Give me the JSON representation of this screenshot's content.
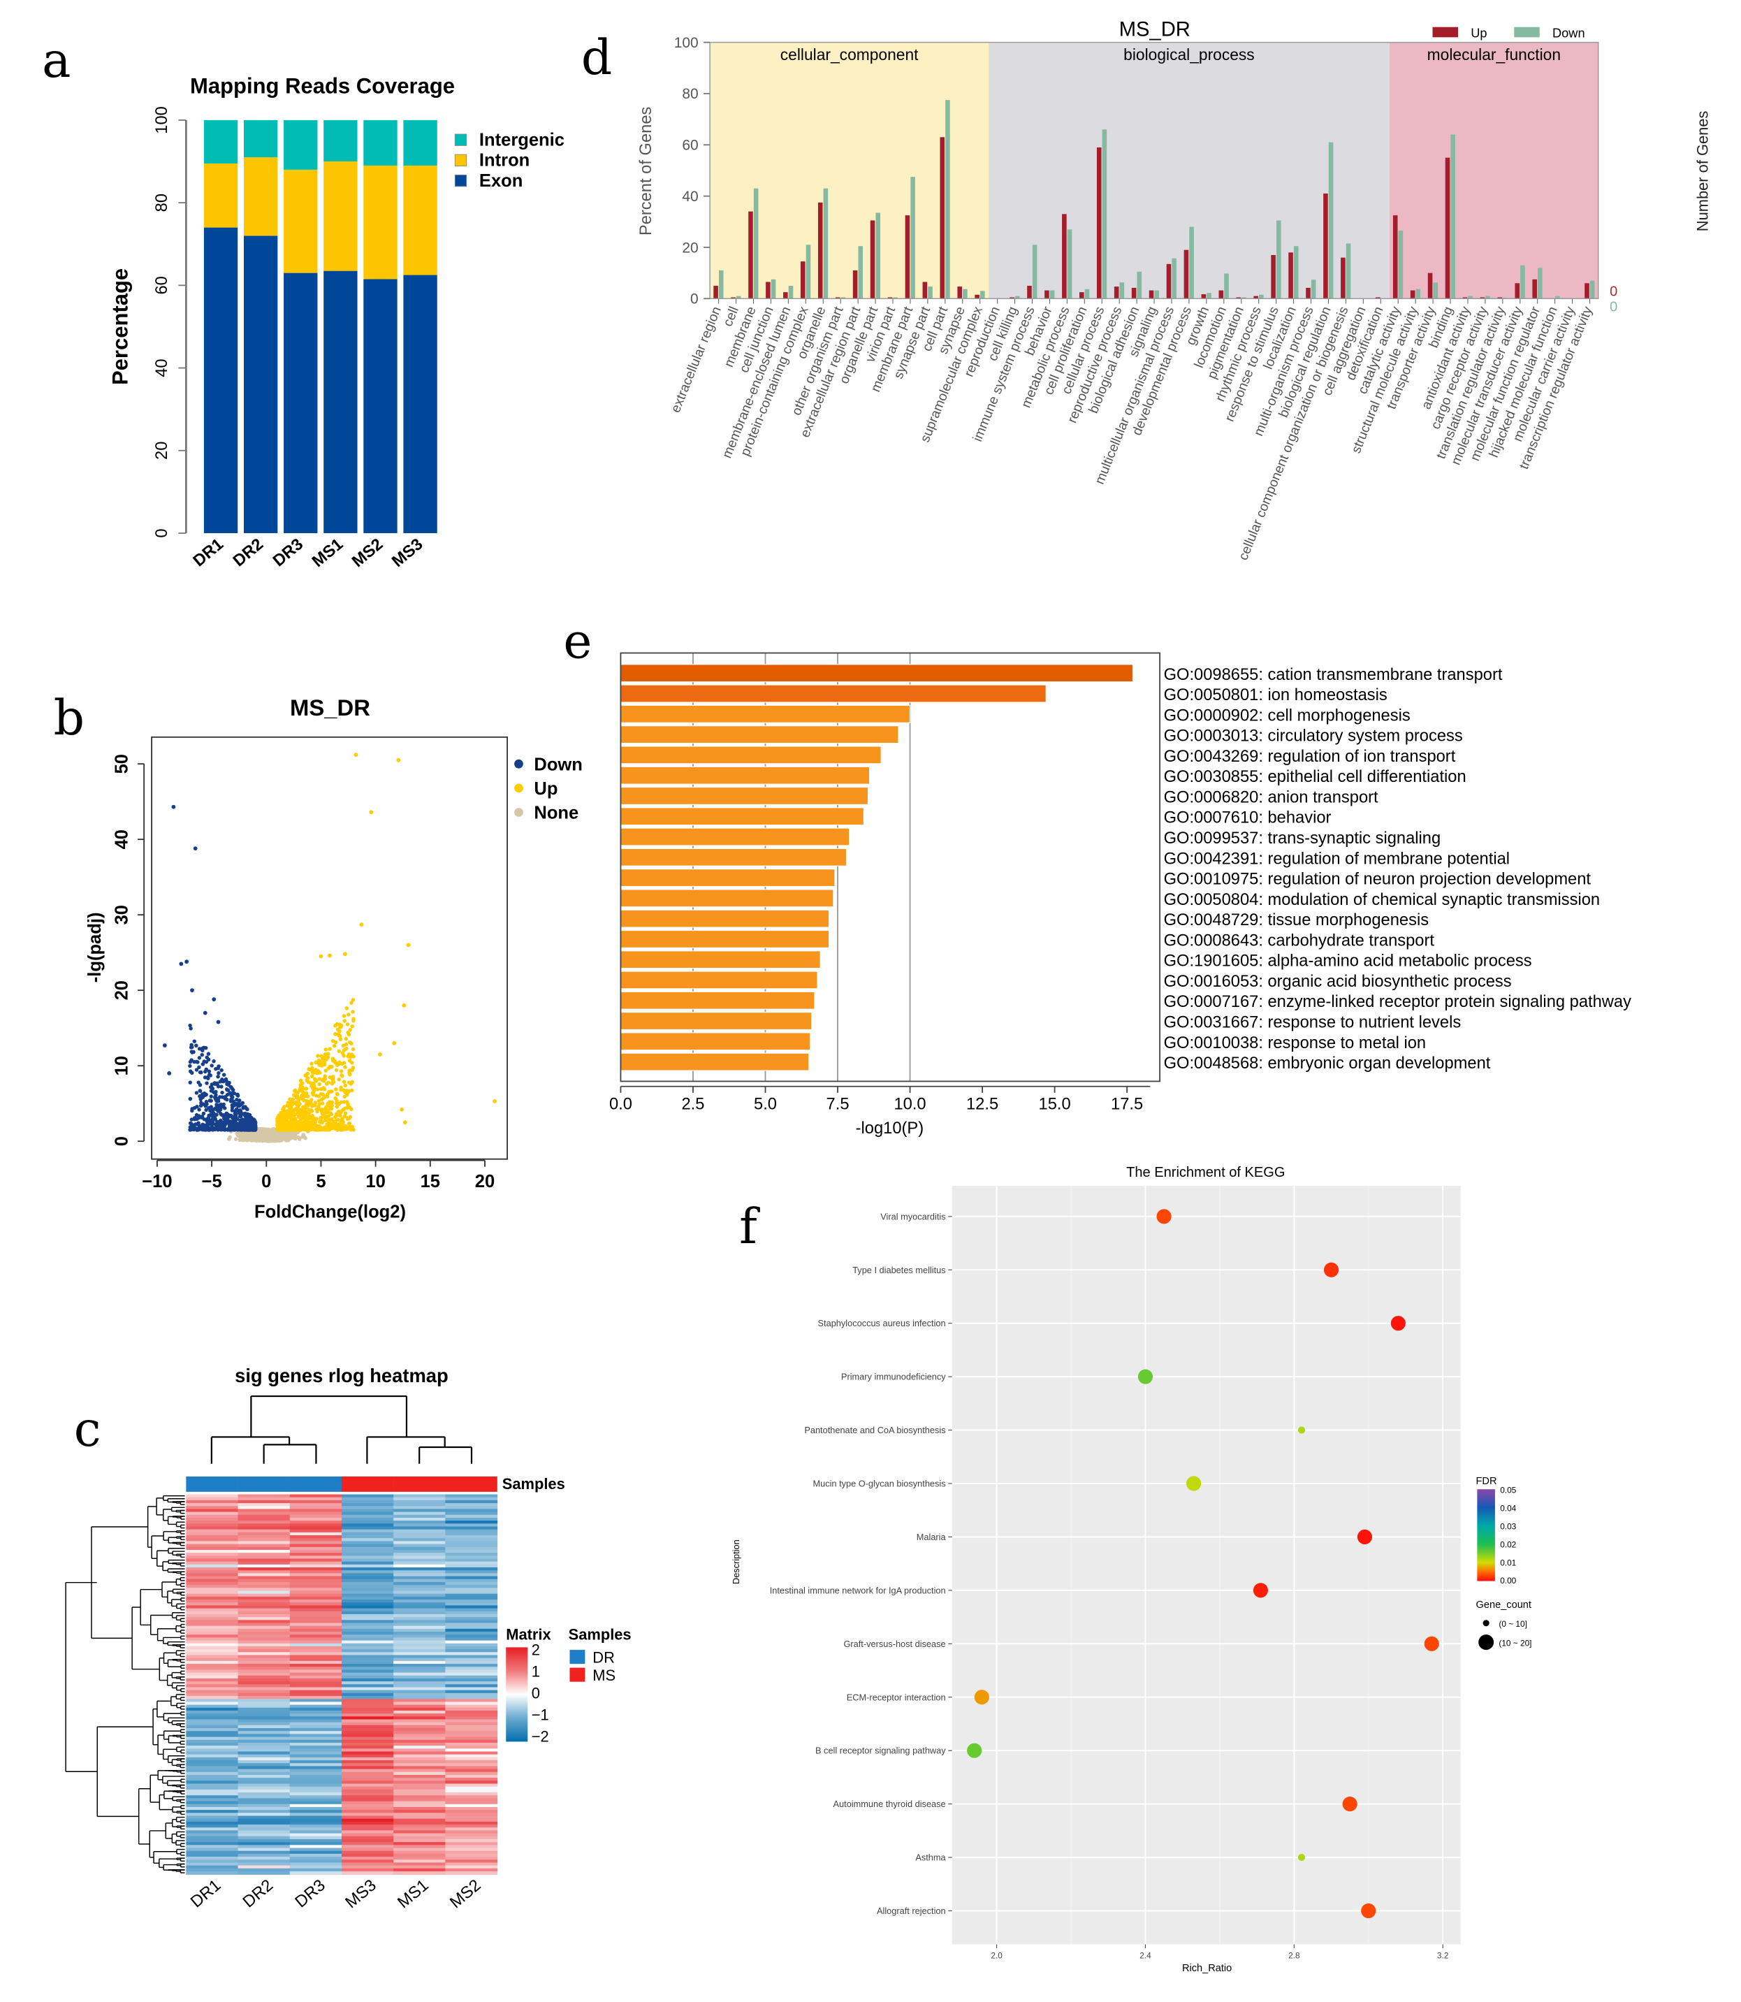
{
  "panel_letters": {
    "a": "a",
    "b": "b",
    "c": "c",
    "d": "d",
    "e": "e",
    "f": "f"
  },
  "chart_data": [
    {
      "id": "a",
      "type": "bar",
      "stacked": true,
      "title": "Mapping Reads Coverage",
      "ylabel": "Percentage",
      "ylim": [
        0,
        100
      ],
      "yticks": [
        "0",
        "20",
        "40",
        "60",
        "80",
        "100"
      ],
      "categories": [
        "DR1",
        "DR2",
        "DR3",
        "MS1",
        "MS2",
        "MS3"
      ],
      "series": [
        {
          "name": "Exon",
          "color": "#00479a",
          "values": [
            74,
            72,
            63,
            63.5,
            61.5,
            62.5
          ]
        },
        {
          "name": "Intron",
          "color": "#fdc500",
          "values": [
            15.5,
            19,
            25,
            26.5,
            27.5,
            26.5
          ]
        },
        {
          "name": "Intergenic",
          "color": "#00bcb4",
          "values": [
            10.5,
            9,
            12,
            10,
            11,
            11
          ]
        }
      ],
      "legend": [
        "Intergenic",
        "Intron",
        "Exon"
      ]
    },
    {
      "id": "b",
      "type": "scatter",
      "title": "MS_DR",
      "xlabel": "FoldChange(log2)",
      "ylabel": "-lg(padj)",
      "xlim": [
        -10,
        22
      ],
      "ylim": [
        0,
        53
      ],
      "xticks": [
        "−10",
        "−5",
        "0",
        "5",
        "10",
        "15",
        "20"
      ],
      "xtick_values": [
        -10,
        -5,
        0,
        5,
        10,
        15,
        20
      ],
      "yticks": [
        "0",
        "10",
        "20",
        "30",
        "40",
        "50"
      ],
      "legend": [
        {
          "name": "Down",
          "color": "#16408c"
        },
        {
          "name": "Up",
          "color": "#ffcc00"
        },
        {
          "name": "None",
          "color": "#d6c7a6"
        }
      ],
      "notable_points": {
        "Down": [
          [
            -8.5,
            44.3
          ],
          [
            -6.5,
            38.8
          ],
          [
            -7.8,
            23.5
          ],
          [
            -7.3,
            23.8
          ],
          [
            -6.8,
            20
          ],
          [
            -4.8,
            18.8
          ],
          [
            -9.3,
            12.7
          ],
          [
            -8.9,
            9
          ],
          [
            -5.6,
            17
          ],
          [
            -4.4,
            15.8
          ]
        ],
        "Up": [
          [
            8.2,
            51.2
          ],
          [
            12.1,
            50.5
          ],
          [
            9.6,
            43.6
          ],
          [
            8.7,
            28.7
          ],
          [
            13,
            26
          ],
          [
            7.2,
            24.8
          ],
          [
            5,
            24.5
          ],
          [
            5.8,
            24.6
          ],
          [
            12.6,
            18
          ],
          [
            11.7,
            13
          ],
          [
            20.9,
            5.3
          ],
          [
            12.4,
            4.2
          ],
          [
            12.7,
            2.5
          ],
          [
            10.4,
            11.5
          ]
        ]
      }
    },
    {
      "id": "c",
      "type": "heatmap",
      "title": "sig genes rlog heatmap",
      "columns": [
        "DR1",
        "DR2",
        "DR3",
        "MS3",
        "MS1",
        "MS2"
      ],
      "column_groups": [
        "DR",
        "DR",
        "DR",
        "MS",
        "MS",
        "MS"
      ],
      "annotation_label": "Samples",
      "matrix_legend_title": "Matrix",
      "matrix_ticks": [
        "2",
        "1",
        "0",
        "−1",
        "−2"
      ],
      "samples_legend_title": "Samples",
      "samples_legend": [
        {
          "name": "DR",
          "color": "#1f7fc6"
        },
        {
          "name": "MS",
          "color": "#f0211f"
        }
      ],
      "clusters": [
        {
          "rows": 70,
          "means": [
            0.6,
            0.9,
            0.9,
            -1.0,
            -0.7,
            -0.8
          ]
        },
        {
          "rows": 60,
          "means": [
            -0.9,
            -0.8,
            -0.8,
            1.2,
            0.8,
            0.7
          ]
        }
      ]
    },
    {
      "id": "d",
      "type": "bar",
      "title": "MS_DR",
      "ylabel": "Percent of Genes",
      "ylabel_right": "Number of Genes",
      "right_ticks": {
        "up": "0",
        "down": "0"
      },
      "ylim": [
        0,
        100
      ],
      "yticks": [
        "0",
        "20",
        "40",
        "60",
        "80",
        "100"
      ],
      "legend": [
        {
          "name": "Up",
          "color": "#a51c2b"
        },
        {
          "name": "Down",
          "color": "#85b9a2"
        }
      ],
      "groups": [
        {
          "name": "cellular_component",
          "color": "#fdf0c3",
          "categories": [
            "extracellular region",
            "cell",
            "membrane",
            "cell junction",
            "membrane-enclosed lumen",
            "protein-containing complex",
            "organelle",
            "other organism part",
            "extracellular region part",
            "organelle part",
            "virion part",
            "membrane part",
            "synapse part",
            "cell part",
            "synapse",
            "supramolecular complex"
          ],
          "up": [
            5,
            0.5,
            34,
            6.5,
            2.5,
            14.5,
            37.5,
            0.5,
            11,
            30.5,
            0.5,
            32.5,
            6.5,
            63,
            4.7,
            1.5
          ],
          "down": [
            11,
            1,
            43,
            7.5,
            5,
            21,
            43,
            0.5,
            20.5,
            33.5,
            0.5,
            47.5,
            4.7,
            77.5,
            3.7,
            3
          ]
        },
        {
          "name": "biological_process",
          "color": "#dbdbe0",
          "categories": [
            "reproduction",
            "cell killing",
            "immune system process",
            "behavior",
            "metabolic process",
            "cell proliferation",
            "cellular process",
            "reproductive process",
            "biological adhesion",
            "signaling",
            "multicellular organismal process",
            "developmental process",
            "growth",
            "locomotion",
            "pigmentation",
            "rhythmic process",
            "response to stimulus",
            "localization",
            "multi-organism process",
            "biological regulation",
            "cellular component organization or biogenesis",
            "cell aggregation",
            "detoxification"
          ],
          "up": [
            0,
            0.5,
            5,
            3.2,
            33,
            2.5,
            59,
            4.7,
            4.2,
            3.2,
            13.5,
            19,
            1.7,
            3.2,
            0.5,
            1,
            17,
            18,
            4.2,
            41,
            16,
            0,
            0.5
          ],
          "down": [
            0,
            1,
            21,
            3.2,
            27,
            3.7,
            66,
            6.3,
            10.5,
            3.2,
            15.7,
            28,
            2.2,
            9.8,
            0.5,
            1.5,
            30.5,
            20.5,
            7.4,
            61,
            21.5,
            0,
            0
          ]
        },
        {
          "name": "molecular_function",
          "color": "#ebb8c4",
          "categories": [
            "catalytic activity",
            "structural molecule activity",
            "transporter activity",
            "binding",
            "antioxidant activity",
            "cargo receptor activity",
            "translation regulator activity",
            "molecular transducer activity",
            "molecular function regulator",
            "hijacked molecular function",
            "molecular carrier activity",
            "transcription regulator activity"
          ],
          "up": [
            32.5,
            3.2,
            10,
            55,
            0.5,
            0.5,
            0.5,
            6,
            7.5,
            0,
            0,
            6
          ],
          "down": [
            26.5,
            3.7,
            6.3,
            64,
            1,
            1,
            0.3,
            13,
            12,
            1,
            0,
            7
          ]
        }
      ]
    },
    {
      "id": "e",
      "type": "bar",
      "orientation": "horizontal",
      "xlabel": "-log10(P)",
      "xlim": [
        0,
        18.5
      ],
      "xticks": [
        "0.0",
        "2.5",
        "5.0",
        "7.5",
        "10.0",
        "12.5",
        "15.0",
        "17.5"
      ],
      "categories": [
        "GO:0098655: cation transmembrane transport",
        "GO:0050801: ion homeostasis",
        "GO:0000902: cell morphogenesis",
        "GO:0003013: circulatory system process",
        "GO:0043269: regulation of ion transport",
        "GO:0030855: epithelial cell differentiation",
        "GO:0006820: anion transport",
        "GO:0007610: behavior",
        "GO:0099537: trans-synaptic signaling",
        "GO:0042391: regulation of membrane potential",
        "GO:0010975: regulation of neuron projection development",
        "GO:0050804: modulation of chemical synaptic transmission",
        "GO:0048729: tissue morphogenesis",
        "GO:0008643: carbohydrate transport",
        "GO:1901605: alpha-amino acid metabolic process",
        "GO:0016053: organic acid biosynthetic process",
        "GO:0007167: enzyme-linked receptor protein signaling pathway",
        "GO:0031667: response to nutrient levels",
        "GO:0010038: response to metal ion",
        "GO:0048568: embryonic organ development"
      ],
      "values": [
        17.7,
        14.7,
        10.0,
        9.6,
        9.0,
        8.6,
        8.55,
        8.4,
        7.9,
        7.8,
        7.4,
        7.35,
        7.2,
        7.2,
        6.9,
        6.8,
        6.7,
        6.6,
        6.55,
        6.5
      ],
      "colors": [
        "#e35c00",
        "#ec6a10",
        "#f7941d"
      ]
    },
    {
      "id": "f",
      "type": "scatter",
      "title": "The Enrichment of KEGG",
      "xlabel": "Rich_Ratio",
      "ylabel": "Description",
      "xlim": [
        1.89,
        3.23
      ],
      "xticks": [
        "2.0",
        "2.4",
        "2.8",
        "3.2"
      ],
      "xtick_values": [
        2.0,
        2.4,
        2.8,
        3.2
      ],
      "categories": [
        "Viral myocarditis",
        "Type I diabetes mellitus",
        "Staphylococcus aureus infection",
        "Primary immunodeficiency",
        "Pantothenate and CoA biosynthesis",
        "Mucin type O-glycan biosynthesis",
        "Malaria",
        "Intestinal immune network for IgA production",
        "Graft-versus-host disease",
        "ECM-receptor interaction",
        "B cell receptor signaling pathway",
        "Autoimmune thyroid disease",
        "Asthma",
        "Allograft rejection"
      ],
      "rich_ratio": [
        2.45,
        2.9,
        3.08,
        2.4,
        2.82,
        2.53,
        2.99,
        2.71,
        3.17,
        1.96,
        1.94,
        2.95,
        2.82,
        3.0
      ],
      "fdr": [
        0.003,
        0.002,
        0.0005,
        0.016,
        0.012,
        0.011,
        0.0005,
        0.001,
        0.003,
        0.007,
        0.016,
        0.003,
        0.012,
        0.003
      ],
      "gene_count_bin": [
        "(10 ~ 20]",
        "(10 ~ 20]",
        "(10 ~ 20]",
        "(10 ~ 20]",
        "(0 ~ 10]",
        "(10 ~ 20]",
        "(10 ~ 20]",
        "(10 ~ 20]",
        "(10 ~ 20]",
        "(10 ~ 20]",
        "(10 ~ 20]",
        "(10 ~ 20]",
        "(0 ~ 10]",
        "(10 ~ 20]"
      ],
      "fdr_legend_title": "FDR",
      "fdr_ticks": [
        "0.05",
        "0.04",
        "0.03",
        "0.02",
        "0.01",
        "0.00"
      ],
      "size_legend_title": "Gene_count",
      "size_legend": [
        "(0 ~ 10]",
        "(10 ~ 20]"
      ]
    }
  ]
}
